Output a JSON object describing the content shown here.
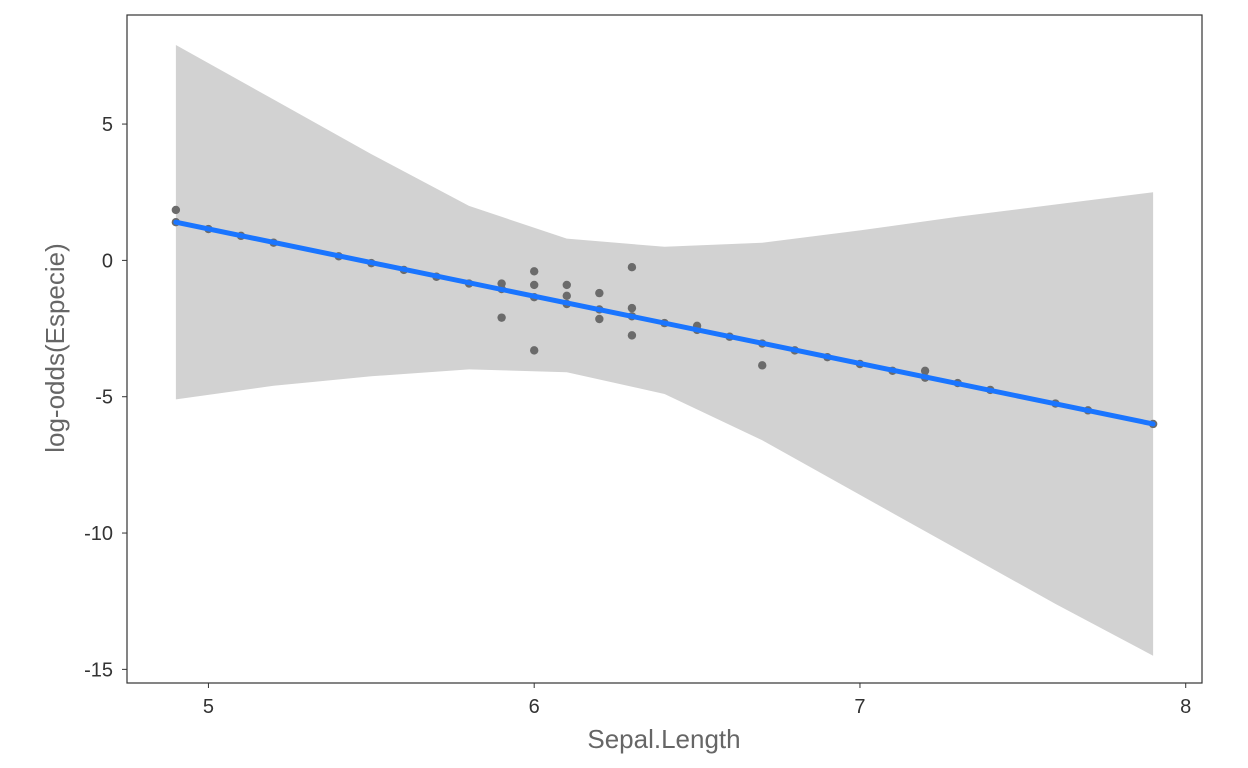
{
  "chart_data": {
    "type": "scatter",
    "title": "",
    "xlabel": "Sepal.Length",
    "ylabel": "log-odds(Especie)",
    "xlim": [
      4.75,
      8.05
    ],
    "ylim": [
      -15.5,
      9.0
    ],
    "x_ticks": [
      {
        "value": 5,
        "label": "5"
      },
      {
        "value": 6,
        "label": "6"
      },
      {
        "value": 7,
        "label": "7"
      },
      {
        "value": 8,
        "label": "8"
      }
    ],
    "y_ticks": [
      {
        "value": 5,
        "label": "5"
      },
      {
        "value": 0,
        "label": "0"
      },
      {
        "value": -5,
        "label": "-5"
      },
      {
        "value": -10,
        "label": "-10"
      },
      {
        "value": -15,
        "label": "-15"
      }
    ],
    "grid": false,
    "legend": "none",
    "colors": {
      "fit_line": "#1a75ff",
      "ribbon": "#d2d2d2",
      "points": "#6b6b6b",
      "panel_border": "#333333"
    },
    "fit_line": {
      "x": [
        4.9,
        7.9
      ],
      "y": [
        1.4,
        -6.0
      ]
    },
    "confidence_band": {
      "x": [
        4.9,
        5.2,
        5.5,
        5.8,
        6.1,
        6.4,
        6.7,
        7.0,
        7.3,
        7.6,
        7.9
      ],
      "upper": [
        7.9,
        5.9,
        3.9,
        2.0,
        0.8,
        0.5,
        0.65,
        1.1,
        1.6,
        2.05,
        2.5
      ],
      "lower": [
        -5.1,
        -4.6,
        -4.25,
        -4.0,
        -4.1,
        -4.9,
        -6.6,
        -8.6,
        -10.6,
        -12.6,
        -14.5
      ]
    },
    "points": [
      {
        "x": 4.9,
        "y": 1.85
      },
      {
        "x": 4.9,
        "y": 1.4
      },
      {
        "x": 5.0,
        "y": 1.15
      },
      {
        "x": 5.1,
        "y": 0.9
      },
      {
        "x": 5.2,
        "y": 0.65
      },
      {
        "x": 5.4,
        "y": 0.15
      },
      {
        "x": 5.5,
        "y": -0.1
      },
      {
        "x": 5.6,
        "y": -0.35
      },
      {
        "x": 5.7,
        "y": -0.6
      },
      {
        "x": 5.8,
        "y": -0.85
      },
      {
        "x": 5.9,
        "y": -0.85
      },
      {
        "x": 5.9,
        "y": -1.05
      },
      {
        "x": 5.9,
        "y": -2.1
      },
      {
        "x": 6.0,
        "y": -0.4
      },
      {
        "x": 6.0,
        "y": -0.9
      },
      {
        "x": 6.0,
        "y": -1.35
      },
      {
        "x": 6.0,
        "y": -3.3
      },
      {
        "x": 6.1,
        "y": -0.9
      },
      {
        "x": 6.1,
        "y": -1.3
      },
      {
        "x": 6.1,
        "y": -1.6
      },
      {
        "x": 6.2,
        "y": -1.2
      },
      {
        "x": 6.2,
        "y": -1.8
      },
      {
        "x": 6.2,
        "y": -2.15
      },
      {
        "x": 6.3,
        "y": -0.25
      },
      {
        "x": 6.3,
        "y": -1.75
      },
      {
        "x": 6.3,
        "y": -2.05
      },
      {
        "x": 6.3,
        "y": -2.75
      },
      {
        "x": 6.4,
        "y": -2.3
      },
      {
        "x": 6.5,
        "y": -2.4
      },
      {
        "x": 6.5,
        "y": -2.55
      },
      {
        "x": 6.6,
        "y": -2.8
      },
      {
        "x": 6.7,
        "y": -3.05
      },
      {
        "x": 6.7,
        "y": -3.85
      },
      {
        "x": 6.8,
        "y": -3.3
      },
      {
        "x": 6.9,
        "y": -3.55
      },
      {
        "x": 7.0,
        "y": -3.8
      },
      {
        "x": 7.1,
        "y": -4.05
      },
      {
        "x": 7.2,
        "y": -4.05
      },
      {
        "x": 7.2,
        "y": -4.3
      },
      {
        "x": 7.3,
        "y": -4.5
      },
      {
        "x": 7.4,
        "y": -4.75
      },
      {
        "x": 7.6,
        "y": -5.25
      },
      {
        "x": 7.7,
        "y": -5.5
      },
      {
        "x": 7.9,
        "y": -6.0
      }
    ]
  }
}
